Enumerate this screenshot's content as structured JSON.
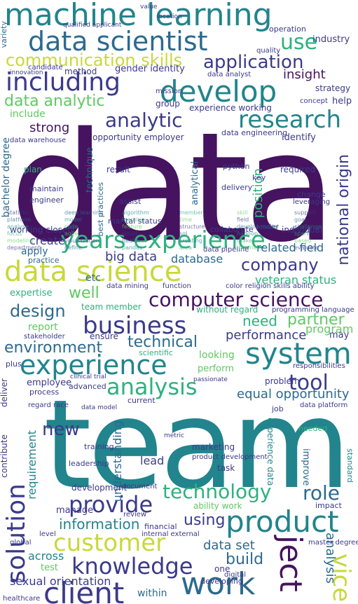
{
  "title": "Word cloud",
  "colors": {
    "purple": "#45135f",
    "violet": "#3b3a8a",
    "blue": "#2c6a8e",
    "teal": "#22848c",
    "green": "#2db27d",
    "lime": "#5ec962",
    "yellow": "#c8d83a",
    "background": "#ffffff"
  },
  "words": {
    "data": "data",
    "team": "team",
    "machine_learning": "machine learning",
    "data_scientist": "data scientist",
    "use": "use",
    "communication_skills": "communication skills",
    "application": "application",
    "including": "including",
    "develop": "develop",
    "insight": "insight",
    "data_analytic": "data analytic",
    "research": "research",
    "analytic": "analytic",
    "strong": "strong",
    "years_experience": "years experience",
    "data_science": "data science",
    "company": "company",
    "computer_science": "computer science",
    "business": "business",
    "design": "design",
    "need": "need",
    "partner": "partner",
    "system": "system",
    "experience": "experience",
    "analysis": "analysis",
    "tool": "tool",
    "environment": "environment",
    "technical": "technical",
    "performance": "performance",
    "product": "product",
    "provide": "provide",
    "technology": "technology",
    "role": "role",
    "customer": "customer",
    "knowledge": "knowledge",
    "work": "work",
    "client": "client",
    "solution": "solution",
    "new": "new",
    "information": "information",
    "using": "using",
    "build": "build",
    "project": "ject",
    "service": "vice",
    "national_origin": "national origin",
    "requirement": "requirement",
    "big_data": "big data",
    "database": "database",
    "veteran_status": "veteran status",
    "related_field": "related field",
    "equal_opportunity": "equal opportunity",
    "data_set": "data set",
    "sexual_orientation": "sexual orientation",
    "across": "across",
    "within": "within",
    "position": "position",
    "etc": "etc",
    "report": "report",
    "program": "program",
    "lead": "lead",
    "understanding": "understanding",
    "include": "include",
    "create": "create",
    "well": "well",
    "analytical": "analytical",
    "gender_identity": "gender identity",
    "method": "method",
    "identify": "identify",
    "help": "help",
    "group": "group",
    "apply": "apply",
    "practice": "practice",
    "bachelor_degree": "bachelor degree",
    "engineer": "engineer",
    "plan": "plan",
    "maintain": "maintain",
    "marketing": "marketing",
    "problem": "problem",
    "improve": "improve",
    "manage": "manage",
    "develop_small": "development",
    "analysis_small": "analysis",
    "industry": "industry",
    "operation": "operation",
    "opportunity_employer": "opportunity employer",
    "data_engineering": "data engineering",
    "experience_working": "experience working",
    "strategy": "strategy",
    "statistic": "statistic",
    "result": "result",
    "python": "python",
    "required": "required",
    "delivery": "delivery",
    "working_closely": "working closely",
    "team_member": "team member",
    "data_mining": "data mining",
    "color_religion": "color religion skills ability",
    "expertise": "expertise",
    "collaborate": "collaborate",
    "marital_status": "marital status",
    "looking": "looking",
    "perform": "perform",
    "employee": "employee",
    "process": "process",
    "deliver": "deliver",
    "contribute": "contribute",
    "ensure": "ensure",
    "responsibilities": "responsibilities",
    "may": "may",
    "data_platform": "data platform",
    "job": "job",
    "training": "training",
    "leadership": "leadership",
    "task": "task",
    "impact": "impact",
    "ability_work": "ability work",
    "internal_external": "internal external",
    "financial": "financial",
    "review": "review",
    "document": "document",
    "test": "test",
    "developing": "developing",
    "level": "level",
    "one": "one",
    "digital": "digital",
    "global": "global",
    "healthcare": "healthcare",
    "master_degree": "master degree",
    "scientific": "scientific",
    "programming_language": "programming language",
    "without_regard": "without regard",
    "current": "current",
    "regard_race": "regard race",
    "advanced": "advanced",
    "key": "key",
    "assist": "assist",
    "quality": "quality",
    "candidate": "candidate",
    "innovation": "innovation",
    "value": "value",
    "location": "location",
    "qualified_applicant": "qualified applicant",
    "concept": "concept",
    "mission": "mission",
    "deep_learning": "deep learning",
    "best_practices": "best practices",
    "algorithm": "algorithm",
    "data_warehouse": "data warehouse",
    "change": "change",
    "individual": "individual",
    "leader": "leader",
    "product_development": "product development",
    "metric": "metric",
    "clinical_trial": "clinical trial",
    "passionate": "passionate",
    "data_model": "data model",
    "data_pipeline": "data pipeline",
    "function": "function",
    "data_analyst": "data analyst",
    "technique": "technique",
    "variety": "variety",
    "standard": "standard",
    "experience_data": "experience data",
    "needed": "needed",
    "stakeholder": "stakeholder",
    "plus": "plus",
    "member": "member",
    "skill": "skill",
    "support": "support",
    "platform": "platform",
    "model": "model",
    "learning": "learning",
    "time": "time",
    "field": "field",
    "goal": "goal",
    "analyse": "analyse",
    "code": "code",
    "feature": "feature",
    "structure": "structure",
    "develop_model": "develop model",
    "challenge": "challenge",
    "focus": "focus",
    "agile": "agile",
    "cloud": "cloud",
    "sql": "sql",
    "hadoop": "hadoop",
    "spark": "spark",
    "modeling": "modeling",
    "visualization": "visualization",
    "health": "health",
    "creating": "creating",
    "leveraging": "leveraging",
    "make": "make",
    "based": "based",
    "department": "department",
    "define": "define",
    "pandas": "pandas",
    "area": "area",
    "internal": "internal",
    "evaluate": "evaluate"
  }
}
